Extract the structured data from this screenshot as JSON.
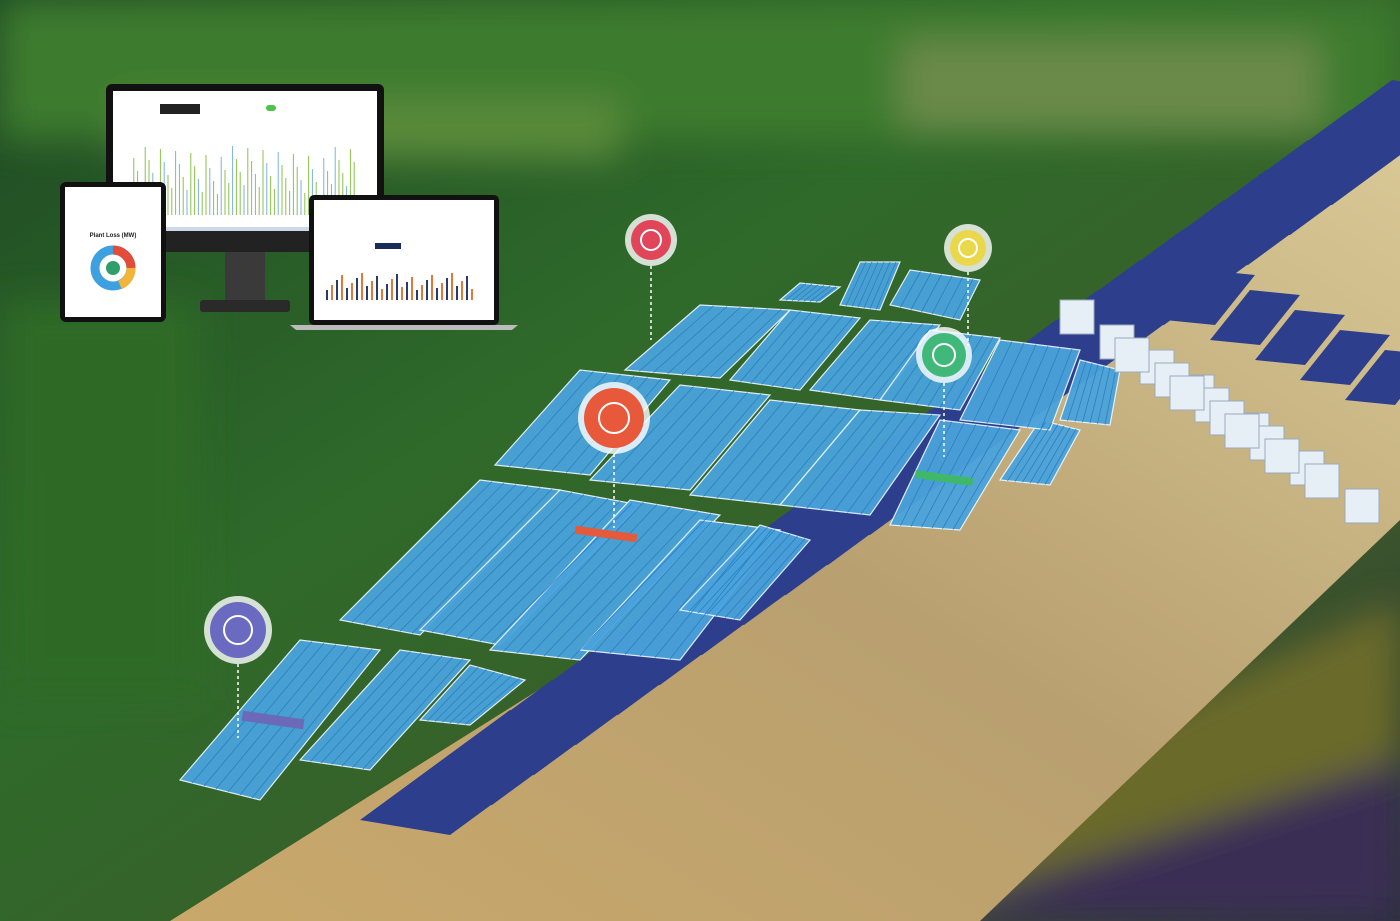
{
  "devices": {
    "tablet": {
      "title": "Plant Loss (MW)"
    }
  }
}
